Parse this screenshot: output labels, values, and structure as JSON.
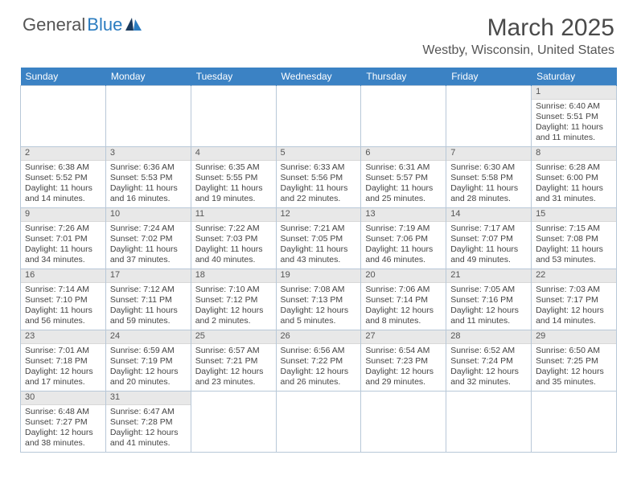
{
  "logo": {
    "general": "General",
    "blue": "Blue"
  },
  "title": "March 2025",
  "location": "Westby, Wisconsin, United States",
  "colors": {
    "header_bg": "#3b82c4",
    "header_text": "#ffffff",
    "daynum_bg": "#e8e8e8",
    "border": "#b8c8d8",
    "logo_blue": "#2b7cc0",
    "text": "#444444"
  },
  "weekdays": [
    "Sunday",
    "Monday",
    "Tuesday",
    "Wednesday",
    "Thursday",
    "Friday",
    "Saturday"
  ],
  "weeks": [
    [
      null,
      null,
      null,
      null,
      null,
      null,
      {
        "n": "1",
        "sr": "Sunrise: 6:40 AM",
        "ss": "Sunset: 5:51 PM",
        "dl": "Daylight: 11 hours and 11 minutes."
      }
    ],
    [
      {
        "n": "2",
        "sr": "Sunrise: 6:38 AM",
        "ss": "Sunset: 5:52 PM",
        "dl": "Daylight: 11 hours and 14 minutes."
      },
      {
        "n": "3",
        "sr": "Sunrise: 6:36 AM",
        "ss": "Sunset: 5:53 PM",
        "dl": "Daylight: 11 hours and 16 minutes."
      },
      {
        "n": "4",
        "sr": "Sunrise: 6:35 AM",
        "ss": "Sunset: 5:55 PM",
        "dl": "Daylight: 11 hours and 19 minutes."
      },
      {
        "n": "5",
        "sr": "Sunrise: 6:33 AM",
        "ss": "Sunset: 5:56 PM",
        "dl": "Daylight: 11 hours and 22 minutes."
      },
      {
        "n": "6",
        "sr": "Sunrise: 6:31 AM",
        "ss": "Sunset: 5:57 PM",
        "dl": "Daylight: 11 hours and 25 minutes."
      },
      {
        "n": "7",
        "sr": "Sunrise: 6:30 AM",
        "ss": "Sunset: 5:58 PM",
        "dl": "Daylight: 11 hours and 28 minutes."
      },
      {
        "n": "8",
        "sr": "Sunrise: 6:28 AM",
        "ss": "Sunset: 6:00 PM",
        "dl": "Daylight: 11 hours and 31 minutes."
      }
    ],
    [
      {
        "n": "9",
        "sr": "Sunrise: 7:26 AM",
        "ss": "Sunset: 7:01 PM",
        "dl": "Daylight: 11 hours and 34 minutes."
      },
      {
        "n": "10",
        "sr": "Sunrise: 7:24 AM",
        "ss": "Sunset: 7:02 PM",
        "dl": "Daylight: 11 hours and 37 minutes."
      },
      {
        "n": "11",
        "sr": "Sunrise: 7:22 AM",
        "ss": "Sunset: 7:03 PM",
        "dl": "Daylight: 11 hours and 40 minutes."
      },
      {
        "n": "12",
        "sr": "Sunrise: 7:21 AM",
        "ss": "Sunset: 7:05 PM",
        "dl": "Daylight: 11 hours and 43 minutes."
      },
      {
        "n": "13",
        "sr": "Sunrise: 7:19 AM",
        "ss": "Sunset: 7:06 PM",
        "dl": "Daylight: 11 hours and 46 minutes."
      },
      {
        "n": "14",
        "sr": "Sunrise: 7:17 AM",
        "ss": "Sunset: 7:07 PM",
        "dl": "Daylight: 11 hours and 49 minutes."
      },
      {
        "n": "15",
        "sr": "Sunrise: 7:15 AM",
        "ss": "Sunset: 7:08 PM",
        "dl": "Daylight: 11 hours and 53 minutes."
      }
    ],
    [
      {
        "n": "16",
        "sr": "Sunrise: 7:14 AM",
        "ss": "Sunset: 7:10 PM",
        "dl": "Daylight: 11 hours and 56 minutes."
      },
      {
        "n": "17",
        "sr": "Sunrise: 7:12 AM",
        "ss": "Sunset: 7:11 PM",
        "dl": "Daylight: 11 hours and 59 minutes."
      },
      {
        "n": "18",
        "sr": "Sunrise: 7:10 AM",
        "ss": "Sunset: 7:12 PM",
        "dl": "Daylight: 12 hours and 2 minutes."
      },
      {
        "n": "19",
        "sr": "Sunrise: 7:08 AM",
        "ss": "Sunset: 7:13 PM",
        "dl": "Daylight: 12 hours and 5 minutes."
      },
      {
        "n": "20",
        "sr": "Sunrise: 7:06 AM",
        "ss": "Sunset: 7:14 PM",
        "dl": "Daylight: 12 hours and 8 minutes."
      },
      {
        "n": "21",
        "sr": "Sunrise: 7:05 AM",
        "ss": "Sunset: 7:16 PM",
        "dl": "Daylight: 12 hours and 11 minutes."
      },
      {
        "n": "22",
        "sr": "Sunrise: 7:03 AM",
        "ss": "Sunset: 7:17 PM",
        "dl": "Daylight: 12 hours and 14 minutes."
      }
    ],
    [
      {
        "n": "23",
        "sr": "Sunrise: 7:01 AM",
        "ss": "Sunset: 7:18 PM",
        "dl": "Daylight: 12 hours and 17 minutes."
      },
      {
        "n": "24",
        "sr": "Sunrise: 6:59 AM",
        "ss": "Sunset: 7:19 PM",
        "dl": "Daylight: 12 hours and 20 minutes."
      },
      {
        "n": "25",
        "sr": "Sunrise: 6:57 AM",
        "ss": "Sunset: 7:21 PM",
        "dl": "Daylight: 12 hours and 23 minutes."
      },
      {
        "n": "26",
        "sr": "Sunrise: 6:56 AM",
        "ss": "Sunset: 7:22 PM",
        "dl": "Daylight: 12 hours and 26 minutes."
      },
      {
        "n": "27",
        "sr": "Sunrise: 6:54 AM",
        "ss": "Sunset: 7:23 PM",
        "dl": "Daylight: 12 hours and 29 minutes."
      },
      {
        "n": "28",
        "sr": "Sunrise: 6:52 AM",
        "ss": "Sunset: 7:24 PM",
        "dl": "Daylight: 12 hours and 32 minutes."
      },
      {
        "n": "29",
        "sr": "Sunrise: 6:50 AM",
        "ss": "Sunset: 7:25 PM",
        "dl": "Daylight: 12 hours and 35 minutes."
      }
    ],
    [
      {
        "n": "30",
        "sr": "Sunrise: 6:48 AM",
        "ss": "Sunset: 7:27 PM",
        "dl": "Daylight: 12 hours and 38 minutes."
      },
      {
        "n": "31",
        "sr": "Sunrise: 6:47 AM",
        "ss": "Sunset: 7:28 PM",
        "dl": "Daylight: 12 hours and 41 minutes."
      },
      null,
      null,
      null,
      null,
      null
    ]
  ]
}
